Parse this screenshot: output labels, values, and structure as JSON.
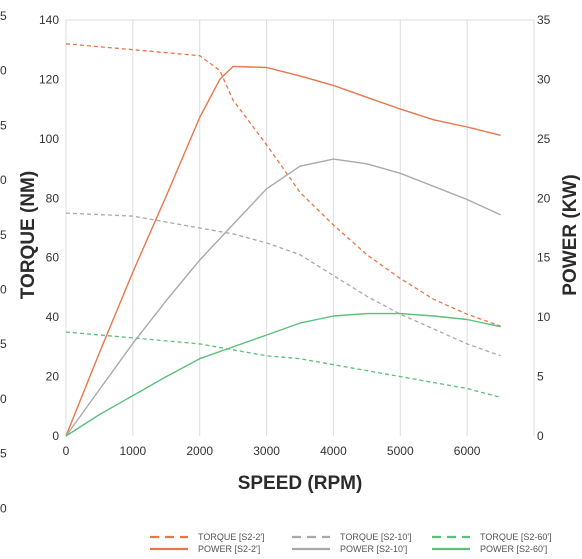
{
  "chart_data": {
    "type": "line",
    "title": "",
    "xlabel": "SPEED (RPM)",
    "ylabel_left": "TORQUE (NM)",
    "ylabel_right": "POWER (KW)",
    "xlim": [
      0,
      7000
    ],
    "ylim_left": [
      0,
      140
    ],
    "ylim_right": [
      0,
      35
    ],
    "x_ticks": [
      0,
      1000,
      2000,
      3000,
      4000,
      5000,
      6000
    ],
    "y_ticks_left": [
      0,
      20,
      40,
      60,
      80,
      100,
      120,
      140
    ],
    "y_ticks_right": [
      0,
      5,
      10,
      15,
      20,
      25,
      30,
      35
    ],
    "grid": "vertical",
    "legend_position": "bottom",
    "edge_ticks_left": [
      "5",
      "0",
      "5",
      "0",
      "5",
      "0",
      "5",
      "0",
      "5",
      "0"
    ],
    "series": [
      {
        "name": "TORQUE [S2-2']",
        "axis": "left",
        "style": "dashed",
        "color": "#e8764a",
        "x": [
          0,
          1000,
          2000,
          2300,
          2500,
          3000,
          3500,
          4000,
          4500,
          5000,
          5500,
          6000,
          6500
        ],
        "y": [
          132,
          130,
          128,
          123,
          113,
          98,
          82,
          71,
          61,
          53,
          46,
          41,
          37
        ]
      },
      {
        "name": "POWER [S2-2']",
        "axis": "right",
        "style": "solid",
        "color": "#e8764a",
        "x": [
          0,
          500,
          1000,
          1500,
          2000,
          2300,
          2500,
          3000,
          3500,
          4000,
          4500,
          5000,
          5500,
          6000,
          6500
        ],
        "y": [
          0,
          7,
          13.8,
          20.2,
          26.8,
          30,
          31.1,
          31,
          30.3,
          29.5,
          28.5,
          27.5,
          26.6,
          26,
          25.3
        ]
      },
      {
        "name": "TORQUE [S2-10']",
        "axis": "left",
        "style": "dashed",
        "color": "#a9a9a9",
        "x": [
          0,
          1000,
          2000,
          2500,
          3000,
          3500,
          4000,
          4500,
          5000,
          5500,
          6000,
          6500
        ],
        "y": [
          75,
          74,
          70,
          68,
          65,
          61,
          54,
          47,
          41,
          36,
          31,
          27
        ]
      },
      {
        "name": "POWER [S2-10']",
        "axis": "right",
        "style": "solid",
        "color": "#a9a9a9",
        "x": [
          0,
          500,
          1000,
          1500,
          2000,
          2500,
          3000,
          3500,
          4000,
          4500,
          5000,
          5500,
          6000,
          6500
        ],
        "y": [
          0,
          3.9,
          7.8,
          11.4,
          14.8,
          17.8,
          20.8,
          22.7,
          23.3,
          22.9,
          22.1,
          21,
          19.9,
          18.6
        ]
      },
      {
        "name": "TORQUE [S2-60']",
        "axis": "left",
        "style": "dashed",
        "color": "#5cbf7a",
        "x": [
          0,
          1000,
          2000,
          3000,
          3500,
          4000,
          5000,
          6000,
          6500
        ],
        "y": [
          35,
          33,
          31,
          27,
          26,
          24,
          20,
          16,
          13
        ]
      },
      {
        "name": "POWER [S2-60']",
        "axis": "right",
        "style": "solid",
        "color": "#5cbf7a",
        "x": [
          0,
          500,
          1000,
          1500,
          2000,
          2500,
          3000,
          3500,
          4000,
          4500,
          5000,
          5500,
          6000,
          6500
        ],
        "y": [
          0,
          1.8,
          3.4,
          5,
          6.5,
          7.5,
          8.5,
          9.5,
          10.1,
          10.3,
          10.3,
          10.1,
          9.8,
          9.2
        ]
      }
    ]
  }
}
